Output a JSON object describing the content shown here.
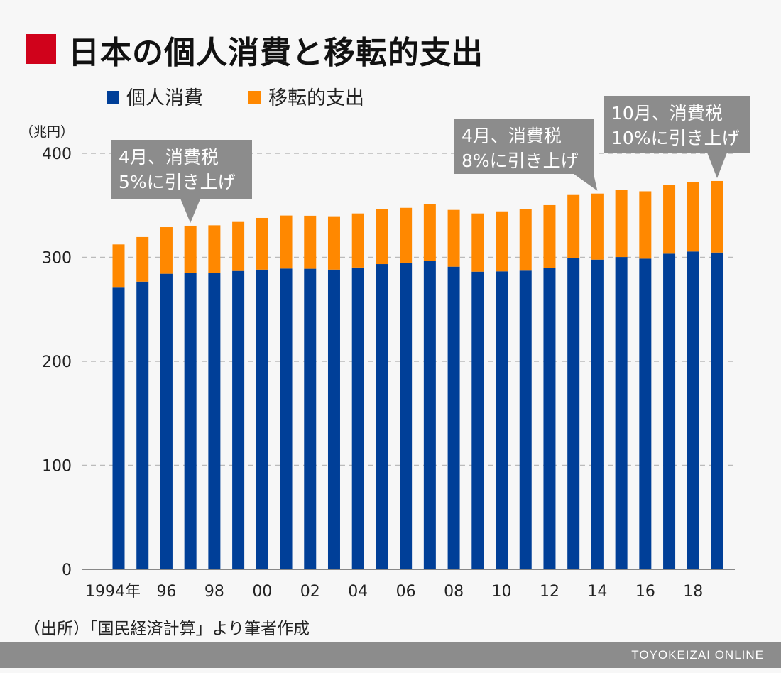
{
  "chart_data": {
    "type": "bar",
    "stacked": true,
    "title": "日本の個人消費と移転的支出",
    "ylabel": "（兆円）",
    "ylim": [
      0,
      400
    ],
    "yticks": [
      0,
      100,
      200,
      300,
      400
    ],
    "grid": true,
    "legend_position": "top-left",
    "categories": [
      "1994",
      "1995",
      "1996",
      "1997",
      "1998",
      "1999",
      "2000",
      "2001",
      "2002",
      "2003",
      "2004",
      "2005",
      "2006",
      "2007",
      "2008",
      "2009",
      "2010",
      "2011",
      "2012",
      "2013",
      "2014",
      "2015",
      "2016",
      "2017",
      "2018",
      "2019"
    ],
    "xtick_labels": [
      "1994年",
      "",
      "96",
      "",
      "98",
      "",
      "00",
      "",
      "02",
      "",
      "04",
      "",
      "06",
      "",
      "08",
      "",
      "10",
      "",
      "12",
      "",
      "14",
      "",
      "16",
      "",
      "18",
      ""
    ],
    "series": [
      {
        "name": "個人消費",
        "color": "#003f98",
        "values": [
          271.5,
          276.6,
          284.2,
          285.1,
          285.1,
          286.9,
          288.2,
          289.2,
          289.0,
          288.2,
          290.2,
          293.5,
          294.9,
          296.9,
          291.0,
          286.2,
          286.5,
          287.2,
          289.9,
          299.2,
          297.8,
          300.3,
          298.7,
          303.5,
          305.6,
          304.6
        ]
      },
      {
        "name": "移転的支出",
        "color": "#ff8800",
        "values": [
          40.9,
          42.9,
          44.8,
          45.3,
          45.7,
          47.1,
          49.7,
          51.0,
          51.0,
          51.3,
          52.0,
          52.7,
          52.7,
          54.0,
          54.6,
          56.0,
          57.7,
          59.2,
          60.3,
          61.4,
          63.5,
          64.6,
          64.8,
          66.1,
          67.1,
          68.8
        ]
      }
    ],
    "annotations": [
      {
        "category": "1997",
        "line1": "4月、消費税",
        "line2": "5%に引き上げ"
      },
      {
        "category": "2014",
        "line1": "4月、消費税",
        "line2": "8%に引き上げ"
      },
      {
        "category": "2019",
        "line1": "10月、消費税",
        "line2": "10%に引き上げ"
      }
    ]
  },
  "source": "（出所）「国民経済計算」より筆者作成",
  "footer": "TOYOKEIZAI ONLINE",
  "colors": {
    "title_mark": "#d0021b",
    "callout": "#8c8c8c"
  }
}
